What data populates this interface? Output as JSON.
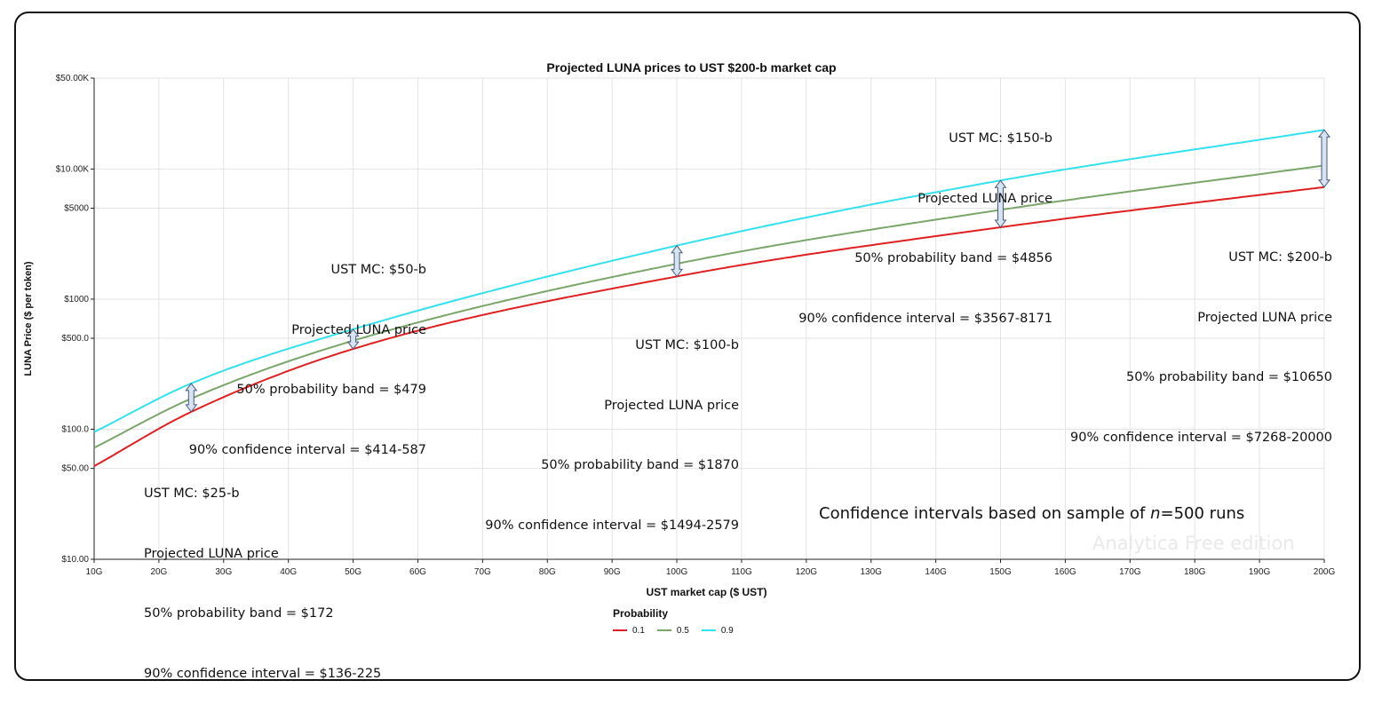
{
  "chart_data": {
    "type": "line",
    "title": "Projected LUNA prices to UST $200-b market cap",
    "xlabel": "UST market cap ($ UST)",
    "ylabel": "LUNA Price ($ per token)",
    "yscale": "log",
    "xlim": [
      10,
      200
    ],
    "ylim": [
      10,
      50000
    ],
    "grid": true,
    "x_ticks": [
      "10G",
      "20G",
      "30G",
      "40G",
      "50G",
      "60G",
      "70G",
      "80G",
      "90G",
      "100G",
      "110G",
      "120G",
      "130G",
      "140G",
      "150G",
      "160G",
      "170G",
      "180G",
      "190G",
      "200G"
    ],
    "y_ticks": [
      {
        "value": 10,
        "label": "$10.00"
      },
      {
        "value": 50,
        "label": "$50.00"
      },
      {
        "value": 100,
        "label": "$100.0"
      },
      {
        "value": 500,
        "label": "$500.0"
      },
      {
        "value": 1000,
        "label": "$1000"
      },
      {
        "value": 5000,
        "label": "$5000"
      },
      {
        "value": 10000,
        "label": "$10.00K"
      },
      {
        "value": 50000,
        "label": "$50.00K"
      }
    ],
    "legend": {
      "title": "Probability",
      "placement": "bottom"
    },
    "x": [
      10,
      25,
      50,
      100,
      150,
      200
    ],
    "series": [
      {
        "name": "0.1",
        "color": "#e02020",
        "values": [
          52,
          136,
          414,
          1494,
          3567,
          7268
        ]
      },
      {
        "name": "0.5",
        "color": "#7aa66a",
        "values": [
          72,
          172,
          479,
          1870,
          4856,
          10650
        ]
      },
      {
        "name": "0.9",
        "color": "#33e0ee",
        "values": [
          95,
          225,
          587,
          2579,
          8171,
          20000
        ]
      }
    ],
    "annotations": [
      {
        "lines": [
          "UST MC: $25-b",
          "Projected LUNA price",
          "50% probability band = $172",
          "90% confidence interval = $136-225"
        ]
      },
      {
        "lines": [
          "UST MC: $50-b",
          "Projected LUNA price",
          "50% probability band = $479",
          "90% confidence interval = $414-587"
        ]
      },
      {
        "lines": [
          "UST MC: $100-b",
          "Projected LUNA price",
          "50% probability band = $1870",
          "90% confidence interval = $1494-2579"
        ]
      },
      {
        "lines": [
          "UST MC: $150-b",
          "Projected LUNA price",
          "50% probability band = $4856",
          "90% confidence interval = $3567-8171"
        ]
      },
      {
        "lines": [
          "UST MC: $200-b",
          "Projected LUNA price",
          "50% probability band = $10650",
          "90% confidence interval = $7268-20000"
        ]
      }
    ],
    "note_prefix": "Confidence intervals based on sample of ",
    "note_var": "n",
    "note_suffix": "=500 runs",
    "watermark": "Analytica Free edition"
  }
}
